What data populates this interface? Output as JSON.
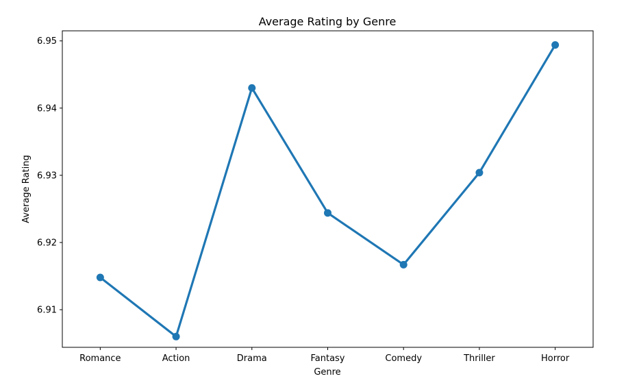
{
  "chart_data": {
    "type": "line",
    "title": "Average Rating by Genre",
    "xlabel": "Genre",
    "ylabel": "Average Rating",
    "categories": [
      "Romance",
      "Action",
      "Drama",
      "Fantasy",
      "Comedy",
      "Thriller",
      "Horror"
    ],
    "series": [
      {
        "values": [
          6.9148,
          6.906,
          6.943,
          6.9244,
          6.9167,
          6.9304,
          6.9494
        ]
      }
    ],
    "ylim": [
      6.9044,
      6.9515
    ],
    "yticks": [
      6.91,
      6.92,
      6.93,
      6.94,
      6.95
    ],
    "ytick_labels": [
      "6.91",
      "6.92",
      "6.93",
      "6.94",
      "6.95"
    ],
    "grid": false,
    "legend": "none",
    "line_color": "#1f77b4"
  }
}
